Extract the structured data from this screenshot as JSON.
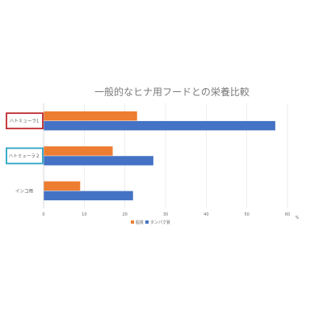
{
  "chart_data": {
    "type": "bar",
    "orientation": "horizontal",
    "title": "一般的なヒナ用フードとの栄養比較",
    "xlabel": "%",
    "ylabel": "",
    "xlim": [
      0,
      60
    ],
    "xticks": [
      0,
      10,
      20,
      30,
      40,
      50,
      60
    ],
    "grid": "vertical",
    "legend_position": "bottom",
    "categories": [
      "ハトミューラ1",
      "ハトミューラ２",
      "インコ用"
    ],
    "highlighted_categories": [
      {
        "label": "ハトミューラ1",
        "border_color": "#c0272d"
      },
      {
        "label": "ハトミューラ２",
        "border_color": "#2aa2c7"
      }
    ],
    "series": [
      {
        "name": "脂質",
        "color": "#ed7d31",
        "values": [
          23,
          17,
          9
        ]
      },
      {
        "name": "タンパク質",
        "color": "#4472c4",
        "values": [
          57,
          27,
          22
        ]
      }
    ]
  }
}
